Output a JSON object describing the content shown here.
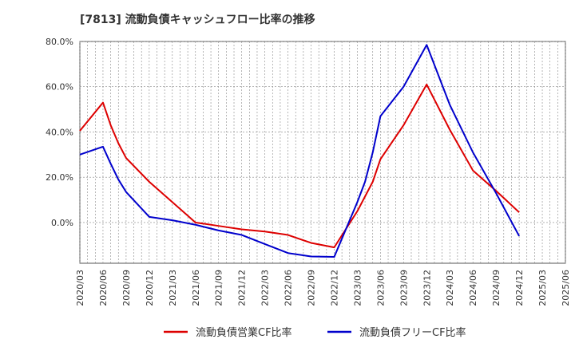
{
  "chart_data": {
    "type": "line",
    "title": "[7813]  流動負債キャッシュフロー比率の推移",
    "ylim": [
      -18,
      80
    ],
    "y_ticks": [
      0,
      20,
      40,
      60,
      80
    ],
    "y_tick_labels": [
      "0.0%",
      "20.0%",
      "40.0%",
      "60.0%",
      "80.0%"
    ],
    "x_tick_labels": [
      "2020/03",
      "2020/06",
      "2020/09",
      "2020/12",
      "2021/03",
      "2021/06",
      "2021/09",
      "2021/12",
      "2022/03",
      "2022/06",
      "2022/09",
      "2022/12",
      "2023/03",
      "2023/06",
      "2023/09",
      "2023/12",
      "2024/03",
      "2024/06",
      "2024/09",
      "2024/12",
      "2025/03",
      "2025/06"
    ],
    "x_range": [
      "2020/03",
      "2025/06"
    ],
    "grid": true,
    "legend_position": "bottom",
    "series": [
      {
        "name": "流動負債営業CF比率",
        "color": "#dd0000",
        "points": [
          [
            "2020/03",
            40.5
          ],
          [
            "2020/06",
            53.0
          ],
          [
            "2020/07",
            43.0
          ],
          [
            "2020/08",
            35.0
          ],
          [
            "2020/09",
            28.5
          ],
          [
            "2020/12",
            18.0
          ],
          [
            "2021/03",
            9.0
          ],
          [
            "2021/05",
            3.0
          ],
          [
            "2021/06",
            0.0
          ],
          [
            "2021/09",
            -1.5
          ],
          [
            "2021/12",
            -3.0
          ],
          [
            "2022/03",
            -4.0
          ],
          [
            "2022/06",
            -5.5
          ],
          [
            "2022/09",
            -9.0
          ],
          [
            "2022/12",
            -11.0
          ],
          [
            "2023/03",
            5.0
          ],
          [
            "2023/05",
            18.0
          ],
          [
            "2023/06",
            28.0
          ],
          [
            "2023/09",
            43.0
          ],
          [
            "2023/12",
            61.0
          ],
          [
            "2024/03",
            41.0
          ],
          [
            "2024/06",
            23.0
          ],
          [
            "2024/09",
            14.0
          ],
          [
            "2024/12",
            4.5
          ]
        ]
      },
      {
        "name": "流動負債フリーCF比率",
        "color": "#0000cc",
        "points": [
          [
            "2020/03",
            30.0
          ],
          [
            "2020/06",
            33.5
          ],
          [
            "2020/07",
            26.0
          ],
          [
            "2020/08",
            19.0
          ],
          [
            "2020/09",
            13.5
          ],
          [
            "2020/12",
            2.5
          ],
          [
            "2021/03",
            1.0
          ],
          [
            "2021/06",
            -1.0
          ],
          [
            "2021/09",
            -3.5
          ],
          [
            "2021/12",
            -5.5
          ],
          [
            "2022/03",
            -9.5
          ],
          [
            "2022/06",
            -13.5
          ],
          [
            "2022/09",
            -15.0
          ],
          [
            "2022/12",
            -15.2
          ],
          [
            "2023/03",
            9.0
          ],
          [
            "2023/04",
            18.0
          ],
          [
            "2023/05",
            31.0
          ],
          [
            "2023/06",
            47.0
          ],
          [
            "2023/09",
            60.0
          ],
          [
            "2023/12",
            78.5
          ],
          [
            "2024/03",
            52.0
          ],
          [
            "2024/06",
            31.0
          ],
          [
            "2024/09",
            13.0
          ],
          [
            "2024/12",
            -6.0
          ]
        ]
      }
    ]
  }
}
